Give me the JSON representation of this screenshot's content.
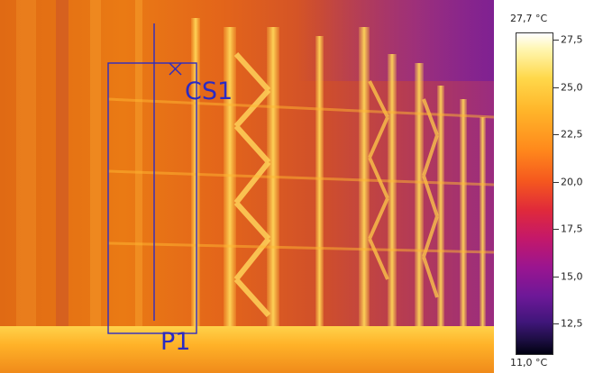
{
  "image": {
    "subject": "Infrared thermal image of a building facade with storage rack structures",
    "palette": "iron",
    "dominant_colors": [
      "#e06a14",
      "#ffb228",
      "#ffd24a",
      "#b63c52",
      "#9a2c80"
    ]
  },
  "overlay": {
    "color": "#2d2cc2",
    "markers": [
      {
        "name": "CS1",
        "label": "CS1",
        "type": "cursor-cross"
      },
      {
        "name": "P1",
        "label": "P1",
        "type": "profile-line"
      }
    ]
  },
  "temperature_scale": {
    "max_label": "27,7 °C",
    "min_label": "11,0 °C",
    "ticks": [
      "27,5",
      "25,0",
      "22,5",
      "20,0",
      "17,5",
      "15,0",
      "12,5"
    ]
  }
}
